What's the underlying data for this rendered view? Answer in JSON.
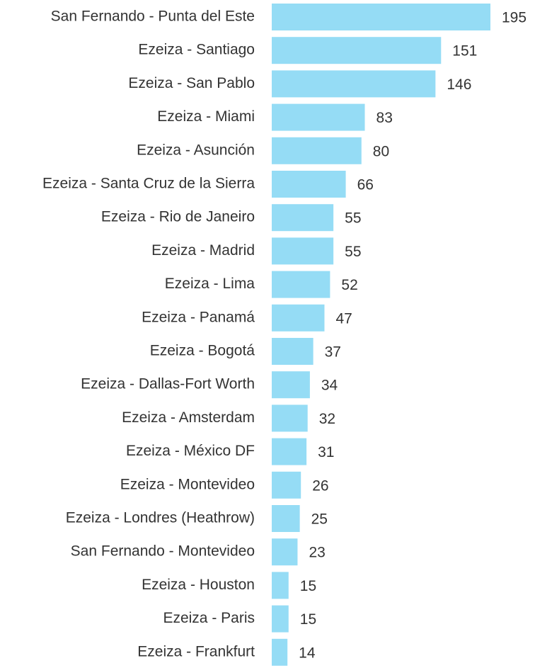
{
  "chart_data": {
    "type": "bar",
    "orientation": "horizontal",
    "color": "#95dcf5",
    "categories": [
      "San Fernando - Punta del Este",
      "Ezeiza - Santiago",
      "Ezeiza - San Pablo",
      "Ezeiza - Miami",
      "Ezeiza - Asunción",
      "Ezeiza - Santa Cruz de la Sierra",
      "Ezeiza - Rio de Janeiro",
      "Ezeiza - Madrid",
      "Ezeiza - Lima",
      "Ezeiza - Panamá",
      "Ezeiza - Bogotá",
      "Ezeiza - Dallas-Fort Worth",
      "Ezeiza - Amsterdam",
      "Ezeiza - México DF",
      "Ezeiza - Montevideo",
      "Ezeiza - Londres (Heathrow)",
      "San Fernando - Montevideo",
      "Ezeiza - Houston",
      "Ezeiza - Paris",
      "Ezeiza - Frankfurt"
    ],
    "values": [
      195,
      151,
      146,
      83,
      80,
      66,
      55,
      55,
      52,
      47,
      37,
      34,
      32,
      31,
      26,
      25,
      23,
      15,
      15,
      14
    ]
  }
}
